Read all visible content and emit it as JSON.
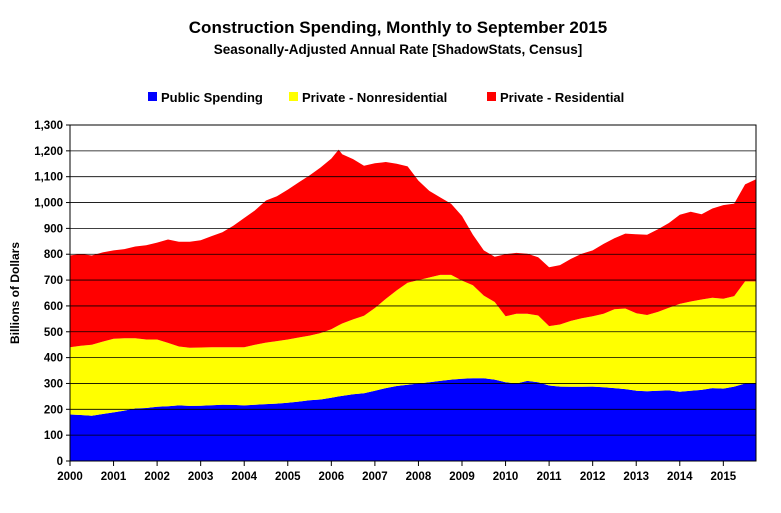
{
  "chart_data": {
    "type": "area",
    "stacked": true,
    "title": "Construction Spending, Monthly to September 2015",
    "subtitle": "Seasonally-Adjusted Annual Rate [ShadowStats, Census]",
    "ylabel": "Billions  of Dollars",
    "xlabel": "",
    "ylim": [
      0,
      1300
    ],
    "xlim": [
      2000.0,
      2015.75
    ],
    "yticks": [
      "0",
      "100",
      "200",
      "300",
      "400",
      "500",
      "600",
      "700",
      "800",
      "900",
      "1,000",
      "1,100",
      "1,200",
      "1,300"
    ],
    "xticks": [
      "2000",
      "2001",
      "2002",
      "2003",
      "2004",
      "2005",
      "2006",
      "2007",
      "2008",
      "2009",
      "2010",
      "2011",
      "2012",
      "2013",
      "2014",
      "2015"
    ],
    "grid": "horizontal",
    "legend_position": "top",
    "x": [
      2000.0,
      2000.25,
      2000.5,
      2000.75,
      2001.0,
      2001.25,
      2001.5,
      2001.75,
      2002.0,
      2002.25,
      2002.5,
      2002.75,
      2003.0,
      2003.25,
      2003.5,
      2003.75,
      2004.0,
      2004.25,
      2004.5,
      2004.75,
      2005.0,
      2005.25,
      2005.5,
      2005.75,
      2006.0,
      2006.17,
      2006.25,
      2006.5,
      2006.75,
      2007.0,
      2007.25,
      2007.5,
      2007.75,
      2008.0,
      2008.25,
      2008.5,
      2008.75,
      2009.0,
      2009.25,
      2009.5,
      2009.75,
      2010.0,
      2010.25,
      2010.5,
      2010.75,
      2011.0,
      2011.25,
      2011.5,
      2011.75,
      2012.0,
      2012.25,
      2012.5,
      2012.75,
      2013.0,
      2013.25,
      2013.5,
      2013.75,
      2014.0,
      2014.25,
      2014.5,
      2014.75,
      2015.0,
      2015.25,
      2015.5,
      2015.75
    ],
    "series": [
      {
        "name": "Public Spending",
        "color": "#0000ff",
        "values": [
          180,
          178,
          175,
          182,
          188,
          195,
          203,
          205,
          210,
          212,
          215,
          213,
          214,
          216,
          218,
          217,
          215,
          218,
          220,
          222,
          225,
          230,
          235,
          238,
          245,
          250,
          252,
          258,
          262,
          272,
          282,
          290,
          295,
          300,
          305,
          310,
          315,
          318,
          320,
          320,
          315,
          305,
          300,
          310,
          305,
          292,
          288,
          287,
          287,
          288,
          285,
          282,
          278,
          272,
          270,
          272,
          273,
          268,
          272,
          275,
          282,
          280,
          288,
          300,
          300
        ]
      },
      {
        "name": "Private - Nonresidential",
        "color": "#ffff00",
        "values": [
          260,
          268,
          275,
          280,
          285,
          280,
          272,
          265,
          260,
          245,
          228,
          225,
          225,
          224,
          222,
          223,
          225,
          232,
          238,
          242,
          245,
          248,
          250,
          257,
          265,
          275,
          280,
          290,
          300,
          320,
          345,
          370,
          395,
          400,
          405,
          410,
          405,
          380,
          360,
          320,
          300,
          255,
          270,
          260,
          258,
          230,
          240,
          255,
          265,
          272,
          285,
          305,
          312,
          300,
          295,
          305,
          320,
          340,
          345,
          350,
          350,
          348,
          350,
          395,
          395
        ]
      },
      {
        "name": "Private - Residential",
        "color": "#ff0000",
        "values": [
          355,
          355,
          345,
          345,
          342,
          345,
          355,
          365,
          375,
          400,
          405,
          410,
          415,
          430,
          445,
          470,
          500,
          520,
          550,
          560,
          580,
          600,
          620,
          640,
          660,
          680,
          655,
          620,
          580,
          560,
          530,
          490,
          450,
          385,
          335,
          300,
          275,
          250,
          195,
          175,
          175,
          240,
          235,
          232,
          225,
          228,
          230,
          240,
          250,
          255,
          270,
          275,
          290,
          305,
          310,
          320,
          328,
          345,
          347,
          330,
          345,
          362,
          358,
          375,
          395
        ]
      }
    ]
  }
}
